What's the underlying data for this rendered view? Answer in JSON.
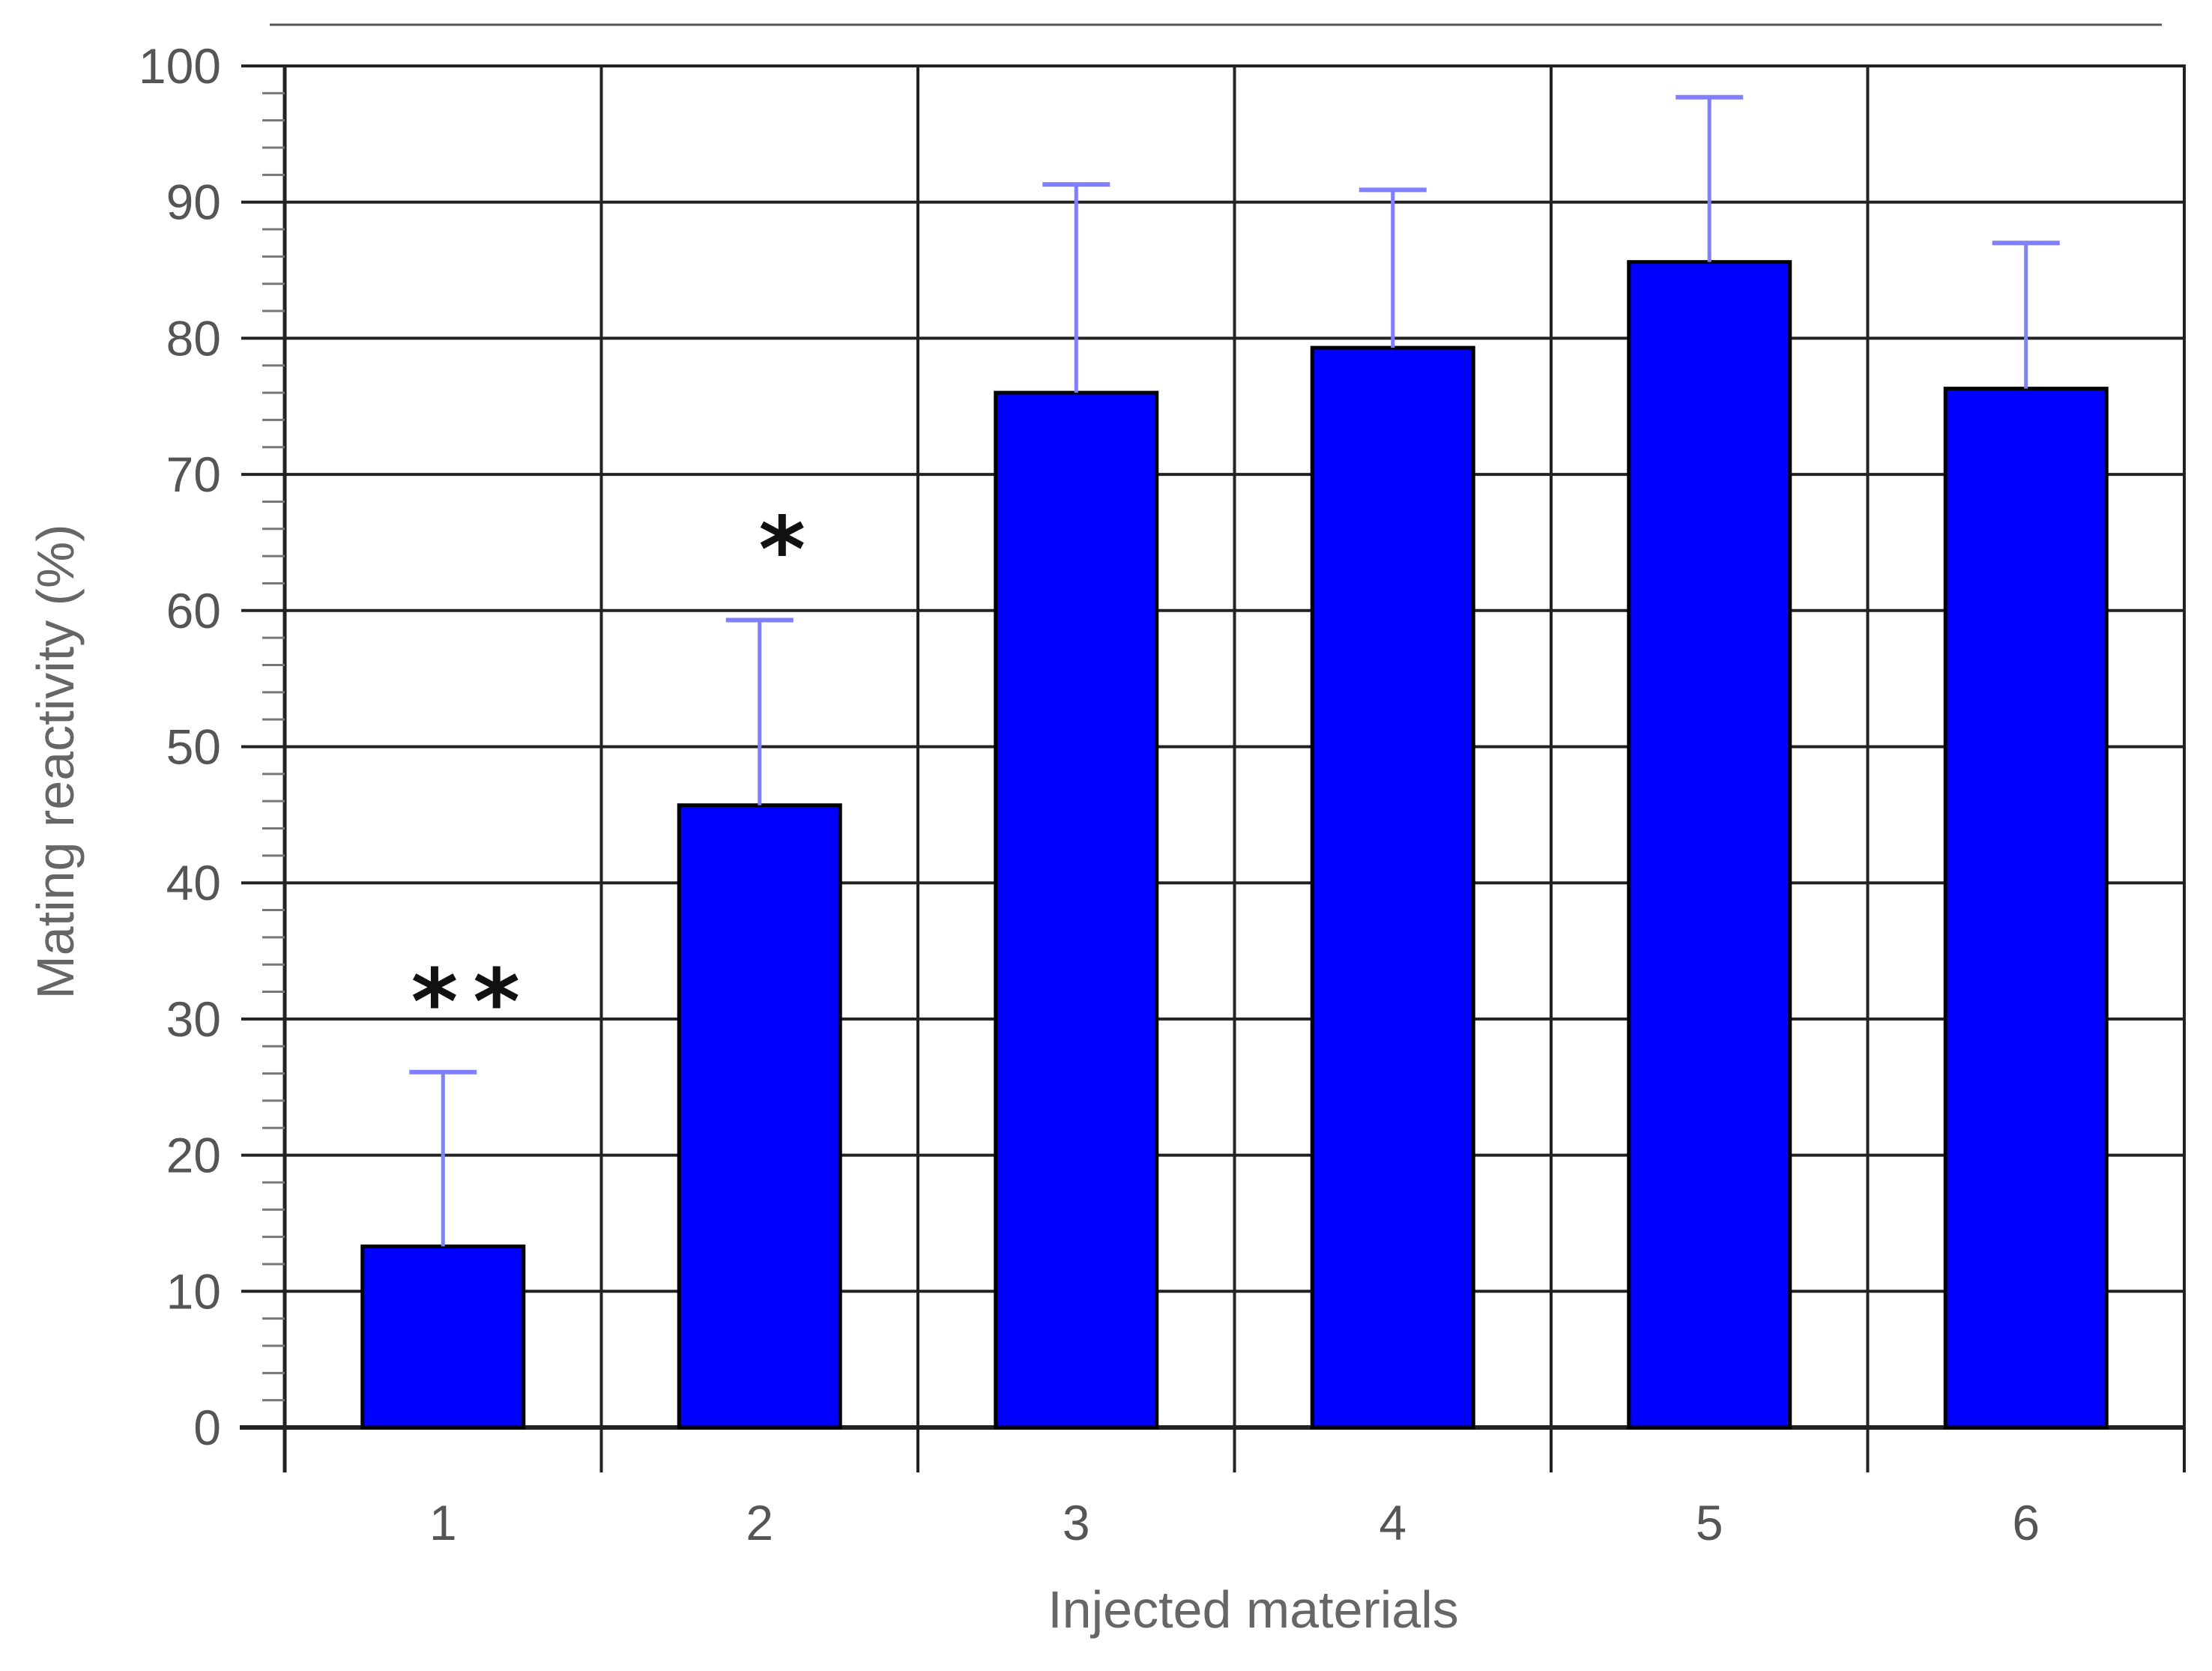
{
  "chart_data": {
    "type": "bar",
    "title": "",
    "xlabel": "Injected materials",
    "ylabel": "Mating reactivity (%)",
    "categories": [
      "1",
      "2",
      "3",
      "4",
      "5",
      "6"
    ],
    "values": [
      13.3,
      45.7,
      76.0,
      79.3,
      85.6,
      76.3
    ],
    "error_upper": [
      26.1,
      59.3,
      91.3,
      90.9,
      97.7,
      87.0
    ],
    "significance": [
      "**",
      "*",
      "",
      "",
      "",
      ""
    ],
    "ylim": [
      0,
      100
    ],
    "yticks": [
      "0",
      "10",
      "20",
      "30",
      "40",
      "50",
      "60",
      "70",
      "80",
      "90",
      "100"
    ],
    "grid": true,
    "bar_color": "#0000ff",
    "error_bar_color": "#7f7fff",
    "legend": "none"
  }
}
